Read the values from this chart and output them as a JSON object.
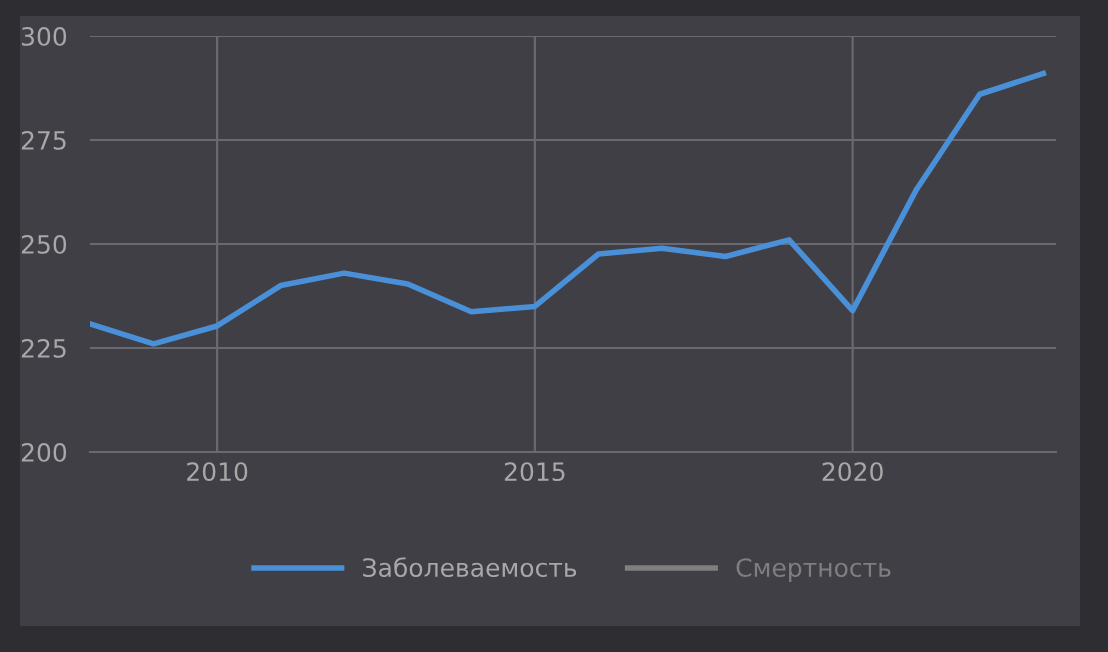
{
  "chart_data": {
    "type": "line",
    "x": [
      2008,
      2009,
      2010,
      2011,
      2012,
      2013,
      2014,
      2015,
      2016,
      2017,
      2018,
      2019,
      2020,
      2021,
      2022,
      2023
    ],
    "series": [
      {
        "name": "Заболеваемость",
        "color": "#4a90d9",
        "values": [
          230.8,
          226,
          230.3,
          240,
          243,
          240.4,
          233.7,
          235,
          247.6,
          249,
          247,
          251,
          234,
          263,
          286,
          291
        ]
      },
      {
        "name": "Смертность",
        "color": "#7f7f7f",
        "values": [
          null,
          null,
          null,
          null,
          null,
          null,
          null,
          null,
          null,
          null,
          null,
          null,
          null,
          null,
          null,
          null
        ]
      }
    ],
    "xlim": [
      2008,
      2023.2
    ],
    "xticks": [
      2010,
      2015,
      2020
    ],
    "ylim": [
      200,
      300
    ],
    "yticks": [
      200,
      225,
      250,
      275,
      300
    ],
    "grid": true,
    "legend": "bottom",
    "marker": "none",
    "line_style": "solid"
  }
}
